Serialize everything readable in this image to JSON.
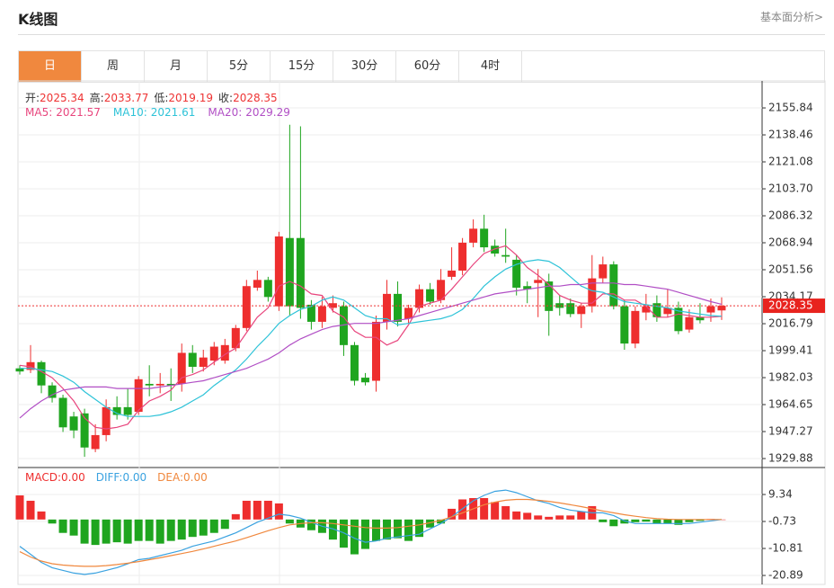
{
  "header": {
    "title": "K线图",
    "link": "基本面分析>"
  },
  "tabs": {
    "items": [
      "日",
      "周",
      "月",
      "5分",
      "15分",
      "30分",
      "60分",
      "4时"
    ],
    "active": 0
  },
  "chart_data": [
    {
      "type": "candlestick",
      "info": [
        {
          "label": "开:",
          "value": 2025.34
        },
        {
          "label": "高:",
          "value": 2033.77
        },
        {
          "label": "低:",
          "value": 2019.19
        },
        {
          "label": "收:",
          "value": 2028.35
        }
      ],
      "up_color": "#ee2e2e",
      "down_color": "#1fa51f",
      "open": [
        1988,
        1987,
        1992,
        1977,
        1969,
        1957,
        1959,
        1936,
        1945,
        1963,
        1963,
        1960,
        1978,
        1977,
        1978,
        1978,
        1998,
        1989,
        1993,
        1993,
        2001,
        2014,
        2040,
        2045,
        2028,
        2072,
        2072,
        2029,
        2018,
        2027,
        2028,
        2003,
        1982,
        1980,
        2018,
        2036,
        2020,
        2027,
        2039,
        2032,
        2047,
        2051,
        2069,
        2078,
        2067,
        2061,
        2058,
        2041,
        2043,
        2044,
        2030,
        2030,
        2023,
        2028,
        2046,
        2055,
        2028,
        2004,
        2024,
        2030,
        2023,
        2027,
        2013,
        2021,
        2024,
        2025.34
      ],
      "high": [
        1990,
        2003,
        1993,
        1979,
        1971,
        1960,
        1962,
        1952,
        1968,
        1970,
        1975,
        1983,
        1990,
        1985,
        1988,
        2004,
        2003,
        2000,
        2005,
        2007,
        2016,
        2045,
        2051,
        2047,
        2076,
        2145,
        2144,
        2032,
        2034,
        2035,
        2031,
        2005,
        1985,
        2022,
        2045,
        2044,
        2029,
        2042,
        2043,
        2052,
        2066,
        2072,
        2084,
        2087,
        2071,
        2078,
        2061,
        2044,
        2052,
        2049,
        2035,
        2033,
        2030,
        2061,
        2060,
        2057,
        2032,
        2028,
        2036,
        2035,
        2039,
        2031,
        2026,
        2030,
        2033,
        2033.77
      ],
      "low": [
        1984,
        1985,
        1972,
        1966,
        1947,
        1943,
        1931,
        1934,
        1941,
        1955,
        1955,
        1958,
        1970,
        1972,
        1967,
        1973,
        1985,
        1986,
        1990,
        1991,
        1999,
        2012,
        2038,
        2031,
        2025,
        2022,
        2020,
        2013,
        2014,
        2024,
        1996,
        1977,
        1977,
        1973,
        2013,
        2015,
        2017,
        2024,
        2029,
        2030,
        2045,
        2048,
        2066,
        2063,
        2060,
        2056,
        2035,
        2030,
        2021,
        2009,
        2022,
        2021,
        2014,
        2024,
        2043,
        2026,
        2000,
        2001,
        2019,
        2018,
        2021,
        2010,
        2011,
        2017,
        2018,
        2019.19
      ],
      "close": [
        1986,
        1992,
        1977,
        1969,
        1950,
        1948,
        1937,
        1945,
        1963,
        1958,
        1958,
        1981,
        1977,
        1978,
        1977,
        1998,
        1989,
        1995,
        2002,
        2003,
        2014,
        2041,
        2045,
        2034,
        2073,
        2028,
        2027,
        2018,
        2028,
        2030,
        2003,
        1980,
        1979,
        2018,
        2036,
        2018,
        2027,
        2039,
        2031,
        2045,
        2051,
        2069,
        2078,
        2066,
        2062,
        2060,
        2040,
        2039,
        2045,
        2025,
        2027,
        2023,
        2028,
        2046,
        2055,
        2028,
        2004,
        2025,
        2028,
        2021,
        2027,
        2012,
        2021,
        2019,
        2028,
        2028.35
      ],
      "series": [
        {
          "name": "MA5:",
          "current": 2021.57,
          "color": "#e8457d",
          "values": [
            1990,
            1989,
            1986,
            1982,
            1975,
            1967,
            1956,
            1950,
            1949,
            1950,
            1952,
            1961,
            1967,
            1970,
            1974,
            1982,
            1984,
            1987,
            1992,
            1997,
            2001,
            2011,
            2021,
            2027,
            2041,
            2044,
            2041,
            2036,
            2035,
            2025,
            2021,
            2012,
            2008,
            2008,
            2003,
            2006,
            2016,
            2028,
            2030,
            2032,
            2039,
            2047,
            2055,
            2062,
            2065,
            2067,
            2061,
            2053,
            2048,
            2042,
            2035,
            2032,
            2030,
            2030,
            2036,
            2036,
            2032,
            2032,
            2028,
            2021,
            2021,
            2023,
            2022,
            2021,
            2021,
            2021.57
          ]
        },
        {
          "name": "MA10:",
          "current": 2021.61,
          "color": "#2ec3d8",
          "values": [
            1988,
            1988,
            1987,
            1986,
            1983,
            1979,
            1973,
            1968,
            1963,
            1959,
            1957,
            1957,
            1957,
            1958,
            1960,
            1963,
            1967,
            1971,
            1977,
            1982,
            1987,
            1994,
            2002,
            2009,
            2017,
            2022,
            2026,
            2028,
            2032,
            2034,
            2032,
            2027,
            2022,
            2020,
            2020,
            2016,
            2017,
            2018,
            2019,
            2020,
            2022,
            2026,
            2033,
            2041,
            2047,
            2052,
            2055,
            2057,
            2058,
            2057,
            2053,
            2047,
            2041,
            2038,
            2037,
            2034,
            2031,
            2030,
            2029,
            2028,
            2027,
            2025,
            2024,
            2023,
            2022,
            2021.61
          ]
        },
        {
          "name": "MA20:",
          "current": 2029.29,
          "color": "#b14fc5",
          "values": [
            1956,
            1962,
            1967,
            1971,
            1974,
            1975,
            1976,
            1976,
            1976,
            1975,
            1975,
            1975,
            1975,
            1976,
            1977,
            1978,
            1979,
            1980,
            1982,
            1984,
            1986,
            1988,
            1991,
            1994,
            1998,
            2003,
            2007,
            2010,
            2013,
            2015,
            2016,
            2017,
            2017,
            2017,
            2018,
            2019,
            2020,
            2022,
            2024,
            2026,
            2028,
            2030,
            2032,
            2034,
            2036,
            2037,
            2038,
            2039,
            2040,
            2041,
            2041,
            2042,
            2042,
            2043,
            2043,
            2043,
            2042,
            2042,
            2041,
            2040,
            2039,
            2037,
            2035,
            2033,
            2031,
            2029.29
          ]
        }
      ],
      "last_price": 2028.35,
      "ylim": [
        1924.1,
        2171.5
      ],
      "yticks": [
        2155.84,
        2138.46,
        2121.08,
        {
          "value": 2103.7,
          "label": "2103.70"
        },
        2086.32,
        2068.94,
        2051.56,
        2034.17,
        2016.79,
        1999.41,
        1982.03,
        1964.65,
        1947.27,
        1929.88
      ],
      "grid": true
    },
    {
      "type": "macd",
      "series": [
        {
          "name": "MACD:",
          "current": 0,
          "current_label": "0.00",
          "color": "#ee2e2e",
          "down_color": "#1fa51f",
          "kind": "bar",
          "values": [
            9,
            7,
            3,
            -1.5,
            -5,
            -6,
            -9,
            -9.5,
            -9,
            -8.5,
            -9,
            -8,
            -8,
            -9,
            -8,
            -7.5,
            -6.5,
            -6,
            -5,
            -3.5,
            2,
            7,
            7,
            7,
            6,
            -1.5,
            -3,
            -4,
            -5,
            -7.5,
            -10.5,
            -13,
            -11,
            -8,
            -7.5,
            -7,
            -8,
            -6.5,
            -3,
            -1.5,
            4,
            7.5,
            8,
            8,
            6.5,
            5,
            3,
            2.5,
            1.5,
            1,
            1.5,
            1.5,
            3,
            5,
            -1,
            -2.5,
            -1.5,
            -1,
            -0.8,
            -1.5,
            -1.5,
            -2,
            -1,
            -0.5,
            0.2,
            0
          ]
        },
        {
          "name": "DIFF:",
          "current": 0,
          "current_label": "0.00",
          "color": "#3aa2e0",
          "kind": "line",
          "values": [
            -10,
            -13,
            -16,
            -18,
            -19,
            -20,
            -20.5,
            -20,
            -19,
            -18,
            -16.5,
            -15,
            -14.5,
            -13.5,
            -12.5,
            -11.5,
            -10,
            -9,
            -8,
            -6.5,
            -5,
            -3,
            -1,
            0.5,
            2,
            1.5,
            0.5,
            -1,
            -2.5,
            -3.5,
            -5,
            -7,
            -8.5,
            -8,
            -7,
            -6.5,
            -6,
            -5.5,
            -3.5,
            -1.5,
            1,
            4,
            7,
            9,
            10.5,
            11,
            10,
            8.5,
            7,
            6,
            4.5,
            3.5,
            3,
            2.5,
            2.5,
            1.5,
            -0.5,
            -1.5,
            -1.5,
            -1.5,
            -1.5,
            -1.5,
            -1.5,
            -1,
            -0.5,
            0
          ]
        },
        {
          "name": "DEA:",
          "current": 0,
          "current_label": "0.00",
          "color": "#f0883e",
          "kind": "line",
          "values": [
            -12,
            -14,
            -15.5,
            -16.5,
            -17,
            -17.3,
            -17.5,
            -17.5,
            -17.2,
            -16.8,
            -16.3,
            -15.7,
            -15,
            -14.3,
            -13.5,
            -12.7,
            -11.9,
            -11,
            -10,
            -9,
            -8,
            -6.8,
            -5.5,
            -4.2,
            -3,
            -2,
            -1.5,
            -1.2,
            -1.2,
            -1.5,
            -2,
            -2.5,
            -3,
            -3.2,
            -3.2,
            -3,
            -2.5,
            -2,
            -1.2,
            -0.3,
            1,
            2.5,
            4,
            5.5,
            6.5,
            7.2,
            7.5,
            7.5,
            7.2,
            6.8,
            6.2,
            5.5,
            4.8,
            4,
            3.2,
            2.5,
            1.8,
            1.2,
            0.7,
            0.3,
            0.1,
            0,
            0,
            0,
            0,
            0
          ]
        }
      ],
      "ylim": [
        -23.56,
        18.74
      ],
      "yticks": [
        9.34,
        -0.73,
        -10.81,
        -20.89
      ],
      "grid": true
    }
  ]
}
